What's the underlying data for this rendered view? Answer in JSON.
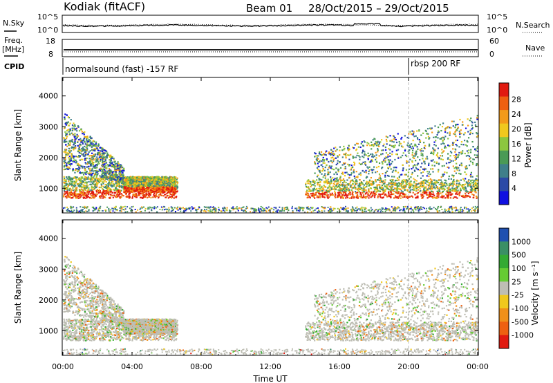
{
  "header": {
    "station": "Kodiak (fitACF)",
    "beam": "Beam 01",
    "date_range": "28/Oct/2015 – 29/Oct/2015"
  },
  "labels": {
    "nsky": "N.Sky",
    "nsearch": "N.Search",
    "freq": "Freq.",
    "freq_unit": "[MHz]",
    "nave": "Nave",
    "cpid": "CPID",
    "cpid_mode_1": "normalsound (fast) -157 RF",
    "cpid_mode_2": "rbsp 200 RF",
    "xlabel": "Time UT"
  },
  "colors": {
    "power_scale": [
      "#1010e0",
      "#2c4aa6",
      "#3f7f8a",
      "#4a9a55",
      "#8cc63f",
      "#f0c81e",
      "#f39a1a",
      "#ee6010",
      "#e11a10"
    ],
    "velocity_scale": [
      "#2050b0",
      "#3a8f65",
      "#33aa33",
      "#66cc33",
      "#bebeb4",
      "#f0c81e",
      "#f0901a",
      "#ee6010",
      "#e11a10"
    ],
    "grey_scatter": "#bebeb4"
  },
  "chart_data": [
    {
      "type": "line",
      "title": "",
      "ylabel": "N.Sky",
      "ylabel_right": "N.Search",
      "y_tick_labels_left": [
        "10^5",
        "10^0"
      ],
      "y_tick_labels_right": [
        "10^5",
        "10^0"
      ],
      "x": [
        "00:00",
        "04:00",
        "08:00",
        "12:00",
        "16:00",
        "20:00",
        "00:00"
      ],
      "series": []
    },
    {
      "type": "line",
      "ylabel": "Freq. [MHz]",
      "ylabel_right": "Nave",
      "y_tick_labels_left": [
        "18",
        "8"
      ],
      "y_tick_labels_right": [
        "60",
        "0"
      ],
      "series": []
    },
    {
      "type": "heatmap",
      "xlabel": "",
      "ylabel": "Slant Range [km]",
      "y_ticks": [
        1000,
        2000,
        3000,
        4000
      ],
      "ylim": [
        200,
        4600
      ],
      "xlim_hours": [
        0,
        24
      ],
      "colorbar": {
        "label": "Power [dB]",
        "ticks": [
          "28",
          "24",
          "20",
          "16",
          "12",
          "8",
          "4"
        ],
        "range": [
          0,
          32
        ]
      },
      "echo_regions": [
        {
          "t_start": 0.0,
          "t_end": 6.6,
          "range_low": 700,
          "range_high": 1400,
          "level": "strong"
        },
        {
          "t_start": 0.0,
          "t_end": 3.5,
          "range_low": 1200,
          "range_high": 3500,
          "level": "medium"
        },
        {
          "t_start": 3.5,
          "t_end": 6.5,
          "range_low": 900,
          "range_high": 1400,
          "level": "strong"
        },
        {
          "t_start": 14.0,
          "t_end": 24.0,
          "range_low": 700,
          "range_high": 1300,
          "level": "strong"
        },
        {
          "t_start": 14.5,
          "t_end": 24.0,
          "range_low": 1300,
          "range_high": 3400,
          "level": "medium"
        }
      ]
    },
    {
      "type": "heatmap",
      "xlabel": "Time UT",
      "ylabel": "Slant Range [km]",
      "y_ticks": [
        1000,
        2000,
        3000,
        4000
      ],
      "ylim": [
        200,
        4600
      ],
      "xlim_hours": [
        0,
        24
      ],
      "x_tick_labels": [
        "00:00",
        "04:00",
        "08:00",
        "12:00",
        "16:00",
        "20:00",
        "00:00"
      ],
      "colorbar": {
        "label": "Velocity [m s⁻¹]",
        "ticks": [
          "1000",
          "500",
          "100",
          "25",
          "-25",
          "-100",
          "-500",
          "-1000"
        ]
      }
    }
  ]
}
